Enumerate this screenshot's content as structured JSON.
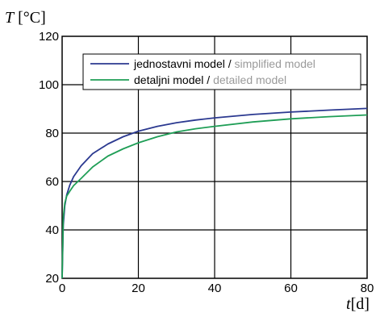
{
  "chart_data": {
    "type": "line",
    "title": "",
    "ylabel": "T [°C]",
    "xlabel": "t[d]",
    "xlim": [
      0,
      80
    ],
    "ylim": [
      20,
      120
    ],
    "xticks": [
      "0",
      "20",
      "40",
      "60",
      "80"
    ],
    "yticks": [
      "20",
      "40",
      "60",
      "80",
      "100",
      "120"
    ],
    "grid": true,
    "legend_position": "top-right",
    "series": [
      {
        "name": "jednostavni model",
        "translation": "simplified model",
        "color": "#2b3990",
        "x": [
          0,
          0.3,
          0.7,
          1.2,
          2,
          3,
          5,
          8,
          12,
          16,
          20,
          25,
          30,
          35,
          40,
          50,
          60,
          70,
          80
        ],
        "y": [
          20,
          42,
          50,
          54.5,
          58.5,
          62,
          66.5,
          71.5,
          75.5,
          78.5,
          80.8,
          82.8,
          84.3,
          85.4,
          86.3,
          87.7,
          88.7,
          89.5,
          90.2
        ]
      },
      {
        "name": "detaljni model",
        "translation": "detailed model",
        "color": "#1f9e56",
        "x": [
          0,
          0.3,
          0.7,
          1.2,
          2,
          3,
          5,
          8,
          12,
          16,
          20,
          25,
          30,
          35,
          40,
          50,
          60,
          70,
          80
        ],
        "y": [
          20,
          45,
          51,
          54,
          56,
          58.3,
          61.3,
          66,
          70.5,
          73.5,
          76,
          78.5,
          80.5,
          81.8,
          82.8,
          84.6,
          85.9,
          86.8,
          87.5
        ]
      }
    ]
  }
}
